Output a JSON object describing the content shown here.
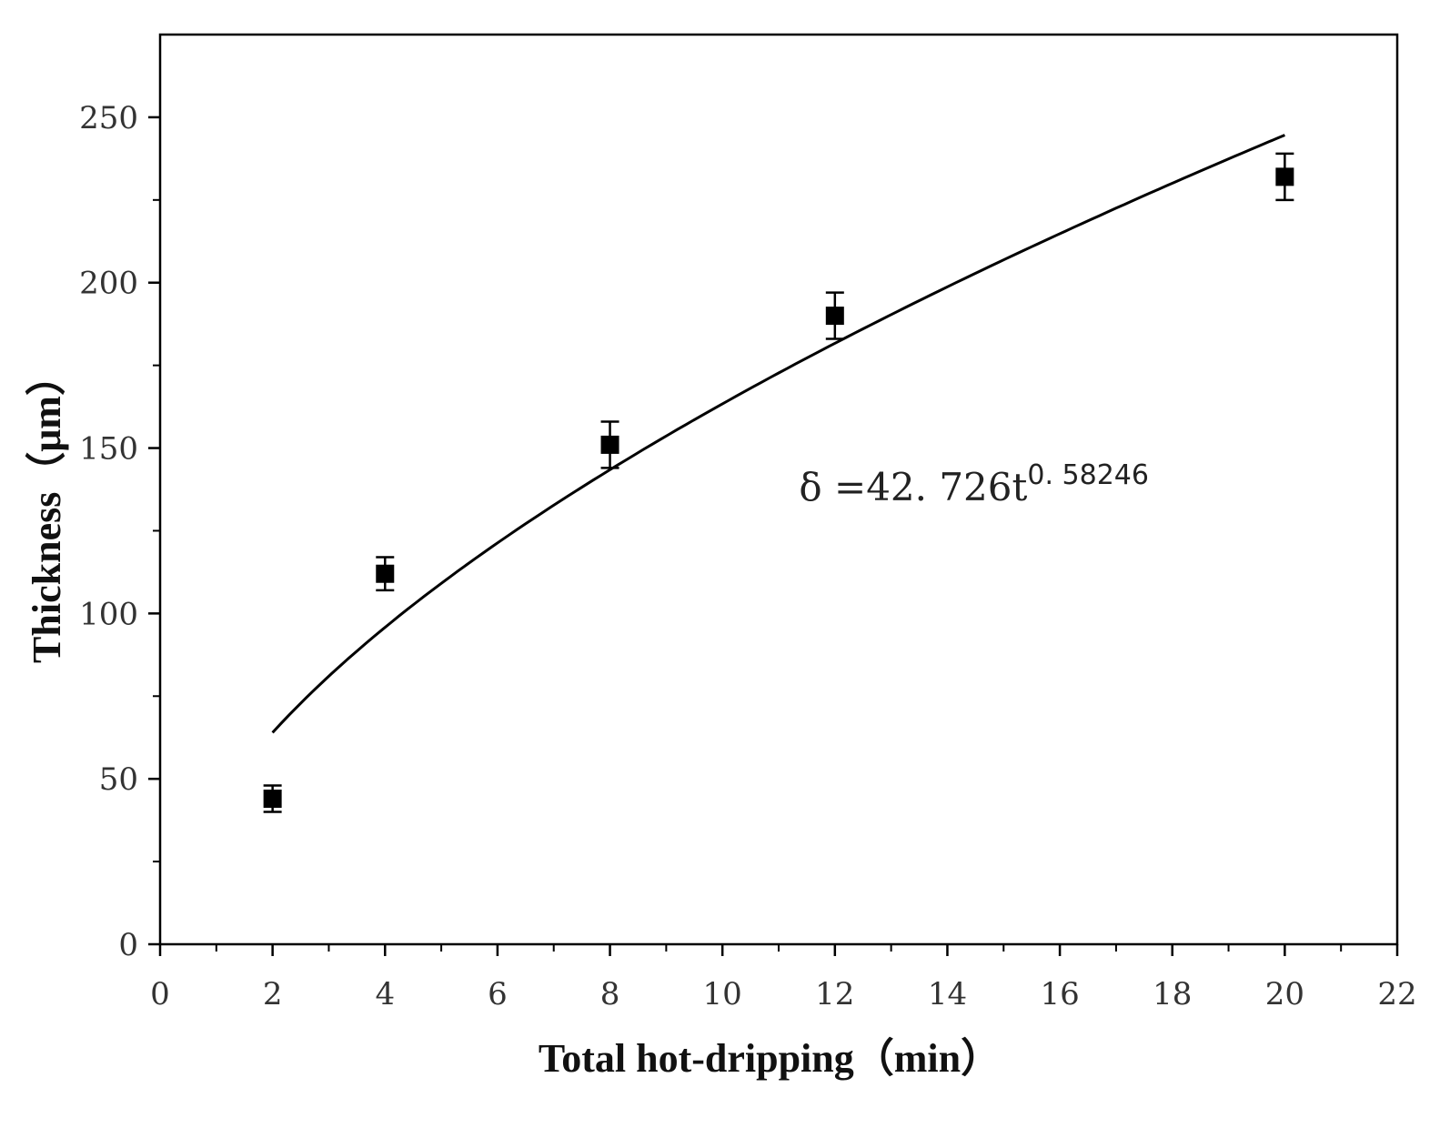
{
  "chart_data": {
    "type": "scatter",
    "title": "",
    "xlabel": "Total hot-dripping（min）",
    "ylabel": "Thickness（μm）",
    "xlim": [
      0,
      22
    ],
    "ylim": [
      0,
      275
    ],
    "x_ticks": [
      "0",
      "2",
      "4",
      "6",
      "8",
      "10",
      "12",
      "14",
      "16",
      "18",
      "20",
      "22"
    ],
    "y_ticks": [
      "0",
      "50",
      "100",
      "150",
      "200",
      "250"
    ],
    "grid": false,
    "series": [
      {
        "type": "scatter",
        "marker": "square",
        "color": "#000000",
        "x": [
          2,
          4,
          8,
          12,
          20
        ],
        "y": [
          44,
          112,
          151,
          190,
          232
        ],
        "error": [
          4,
          5,
          7,
          7,
          7
        ]
      },
      {
        "type": "line",
        "color": "#000000",
        "fit": {
          "a": 42.726,
          "b": 0.58246
        },
        "x_range": [
          2,
          20
        ]
      }
    ],
    "annotation": {
      "text": "δ =42. 726t",
      "superscript": "0. 58246",
      "x": 11.2,
      "y": 138
    }
  }
}
